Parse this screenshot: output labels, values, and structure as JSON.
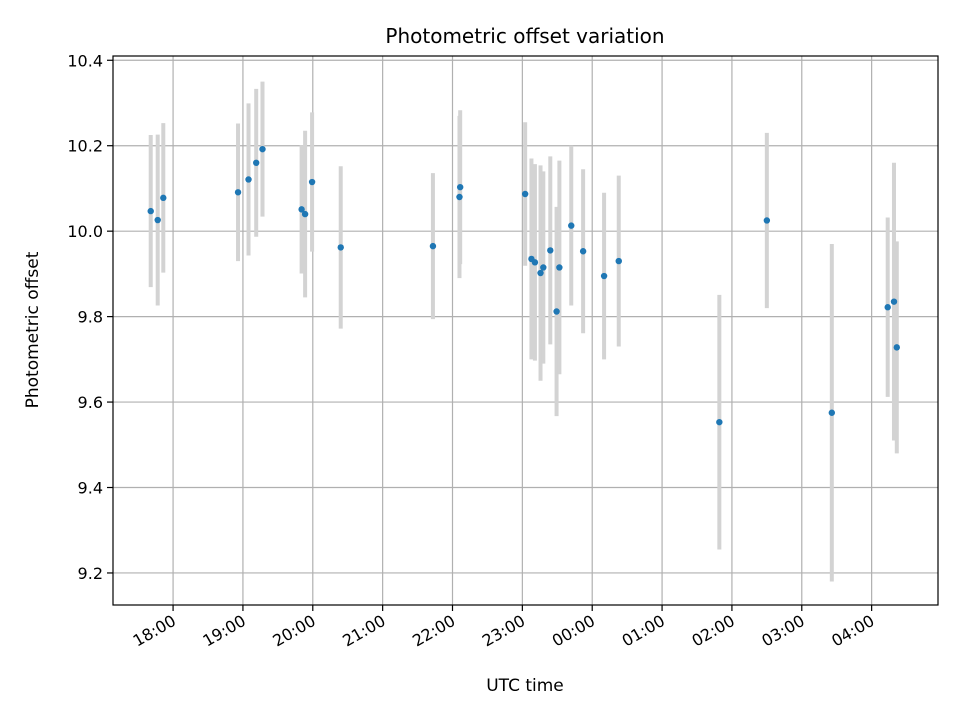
{
  "chart_data": {
    "type": "scatter",
    "title": "Photometric offset variation",
    "xlabel": "UTC time",
    "ylabel": "Photometric offset",
    "x_unit": "hours since 00:00 UTC on first night (values >24 fall after midnight)",
    "xlim": [
      17.14,
      28.95
    ],
    "ylim": [
      9.125,
      10.41
    ],
    "grid": true,
    "marker_color": "#1f77b4",
    "errorbar_color": "#d3d3d3",
    "x_ticks": [
      {
        "value": 18,
        "label": "18:00"
      },
      {
        "value": 19,
        "label": "19:00"
      },
      {
        "value": 20,
        "label": "20:00"
      },
      {
        "value": 21,
        "label": "21:00"
      },
      {
        "value": 22,
        "label": "22:00"
      },
      {
        "value": 23,
        "label": "23:00"
      },
      {
        "value": 24,
        "label": "00:00"
      },
      {
        "value": 25,
        "label": "01:00"
      },
      {
        "value": 26,
        "label": "02:00"
      },
      {
        "value": 27,
        "label": "03:00"
      },
      {
        "value": 28,
        "label": "04:00"
      }
    ],
    "y_ticks": [
      {
        "value": 9.2,
        "label": "9.2"
      },
      {
        "value": 9.4,
        "label": "9.4"
      },
      {
        "value": 9.6,
        "label": "9.6"
      },
      {
        "value": 9.8,
        "label": "9.8"
      },
      {
        "value": 10.0,
        "label": "10.0"
      },
      {
        "value": 10.2,
        "label": "10.2"
      },
      {
        "value": 10.4,
        "label": "10.4"
      }
    ],
    "points": [
      {
        "x": 17.68,
        "y": 10.047,
        "err": 0.178
      },
      {
        "x": 17.78,
        "y": 10.026,
        "err": 0.2
      },
      {
        "x": 17.86,
        "y": 10.078,
        "err": 0.175
      },
      {
        "x": 18.93,
        "y": 10.091,
        "err": 0.161
      },
      {
        "x": 19.08,
        "y": 10.121,
        "err": 0.178
      },
      {
        "x": 19.19,
        "y": 10.16,
        "err": 0.173
      },
      {
        "x": 19.28,
        "y": 10.192,
        "err": 0.158
      },
      {
        "x": 19.84,
        "y": 10.051,
        "err": 0.15
      },
      {
        "x": 19.89,
        "y": 10.04,
        "err": 0.195
      },
      {
        "x": 19.99,
        "y": 10.115,
        "err": 0.163
      },
      {
        "x": 20.4,
        "y": 9.962,
        "err": 0.19
      },
      {
        "x": 21.72,
        "y": 9.965,
        "err": 0.171
      },
      {
        "x": 22.1,
        "y": 10.08,
        "err": 0.19
      },
      {
        "x": 22.11,
        "y": 10.103,
        "err": 0.18
      },
      {
        "x": 23.04,
        "y": 10.087,
        "err": 0.168
      },
      {
        "x": 23.13,
        "y": 9.935,
        "err": 0.235
      },
      {
        "x": 23.18,
        "y": 9.927,
        "err": 0.23
      },
      {
        "x": 23.26,
        "y": 9.902,
        "err": 0.252
      },
      {
        "x": 23.3,
        "y": 9.915,
        "err": 0.225
      },
      {
        "x": 23.4,
        "y": 9.955,
        "err": 0.22
      },
      {
        "x": 23.49,
        "y": 9.812,
        "err": 0.245
      },
      {
        "x": 23.53,
        "y": 9.915,
        "err": 0.25
      },
      {
        "x": 23.7,
        "y": 10.013,
        "err": 0.187
      },
      {
        "x": 23.87,
        "y": 9.953,
        "err": 0.192
      },
      {
        "x": 24.17,
        "y": 9.895,
        "err": 0.195
      },
      {
        "x": 24.38,
        "y": 9.93,
        "err": 0.2
      },
      {
        "x": 25.82,
        "y": 9.553,
        "err": 0.298
      },
      {
        "x": 26.5,
        "y": 10.025,
        "err": 0.205
      },
      {
        "x": 27.43,
        "y": 9.575,
        "err": 0.395
      },
      {
        "x": 28.23,
        "y": 9.822,
        "err": 0.21
      },
      {
        "x": 28.32,
        "y": 9.835,
        "err": 0.325
      },
      {
        "x": 28.36,
        "y": 9.728,
        "err": 0.248
      }
    ]
  }
}
